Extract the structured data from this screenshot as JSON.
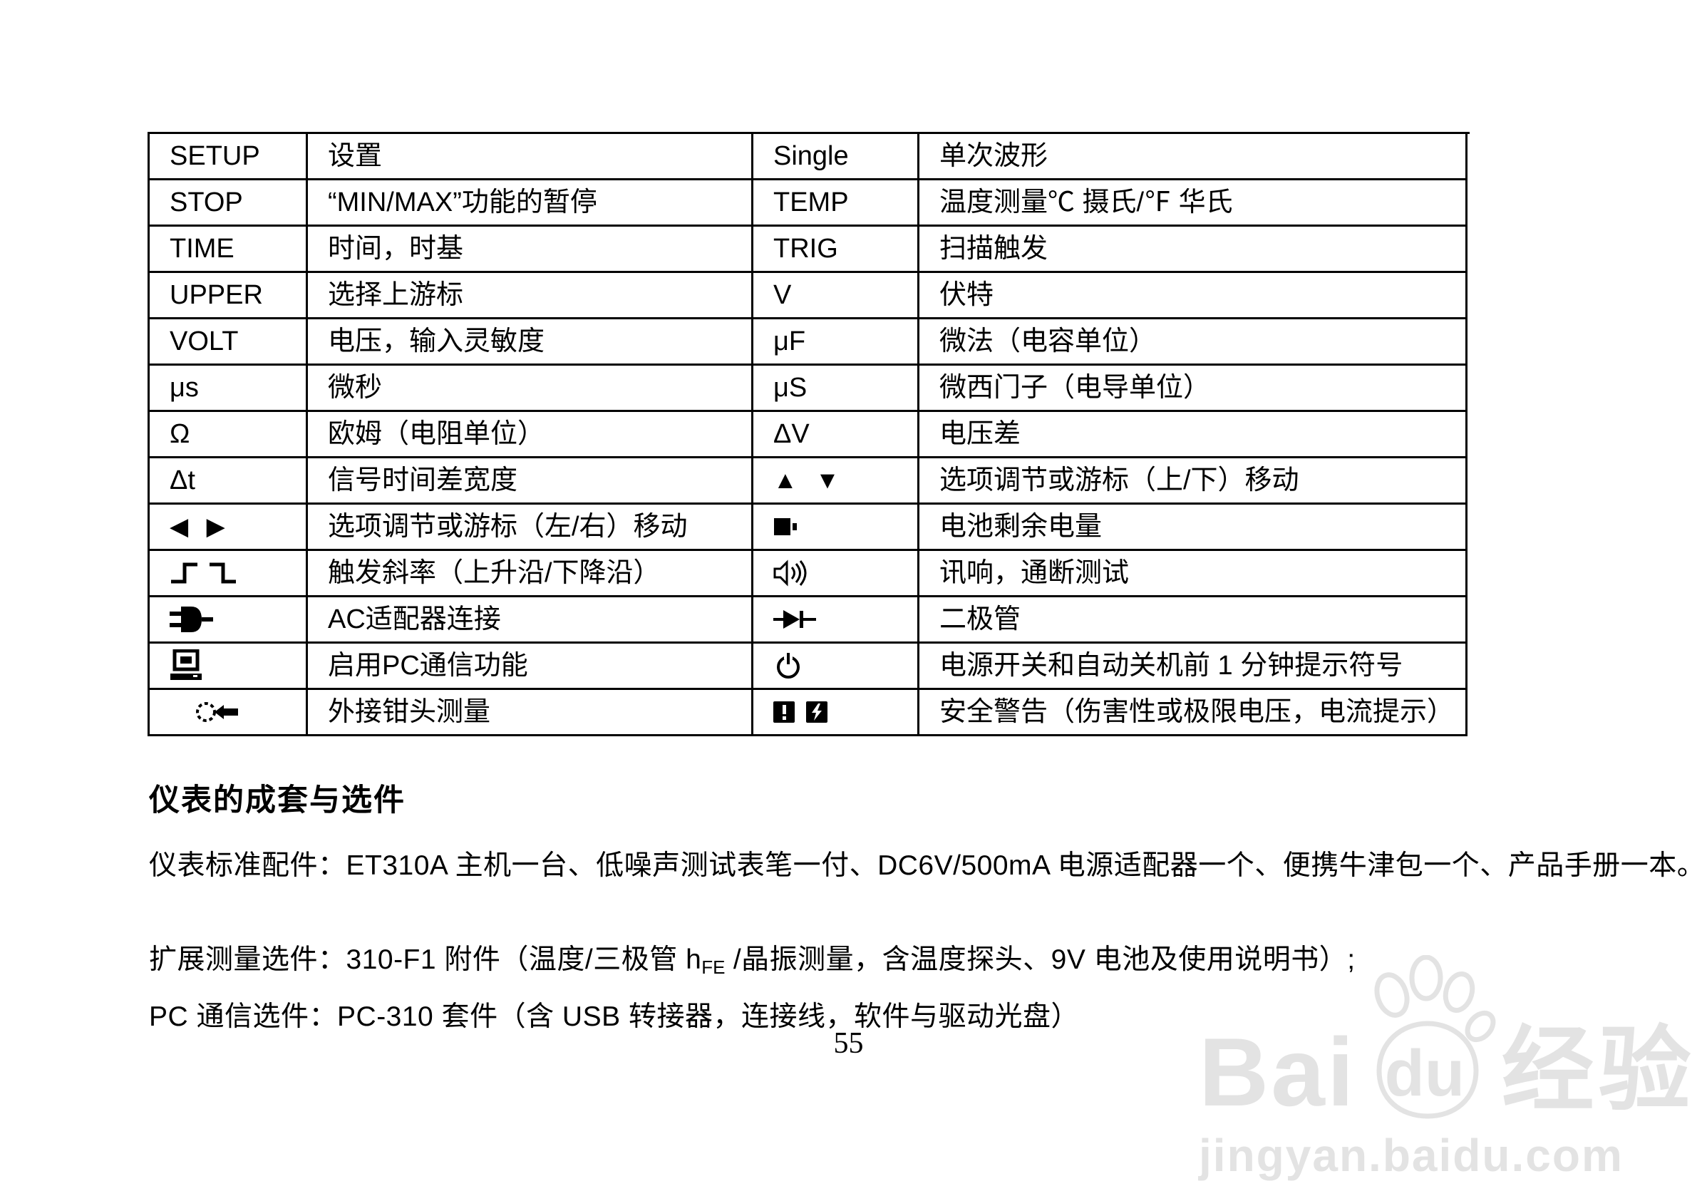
{
  "page": {
    "number": "55"
  },
  "table": {
    "rows": [
      {
        "c1": {
          "type": "text",
          "value": "SETUP"
        },
        "c2": "设置",
        "c3": {
          "type": "text",
          "value": "Single"
        },
        "c4": "单次波形"
      },
      {
        "c1": {
          "type": "text",
          "value": "STOP"
        },
        "c2": "“MIN/MAX”功能的暂停",
        "c3": {
          "type": "text",
          "value": "TEMP"
        },
        "c4": "温度测量℃ 摄氏/℉ 华氏"
      },
      {
        "c1": {
          "type": "text",
          "value": "TIME"
        },
        "c2": "时间，时基",
        "c3": {
          "type": "text",
          "value": "TRIG"
        },
        "c4": "扫描触发"
      },
      {
        "c1": {
          "type": "text",
          "value": "UPPER"
        },
        "c2": "选择上游标",
        "c3": {
          "type": "text",
          "value": "V"
        },
        "c4": "伏特"
      },
      {
        "c1": {
          "type": "text",
          "value": "VOLT"
        },
        "c2": "电压，输入灵敏度",
        "c3": {
          "type": "text",
          "value": "μF"
        },
        "c4": "微法（电容单位）"
      },
      {
        "c1": {
          "type": "text",
          "value": "μs"
        },
        "c2": "微秒",
        "c3": {
          "type": "text",
          "value": "μS"
        },
        "c4": "微西门子（电导单位）"
      },
      {
        "c1": {
          "type": "text",
          "value": "Ω"
        },
        "c2": "欧姆（电阻单位）",
        "c3": {
          "type": "text",
          "value": "ΔV"
        },
        "c4": "电压差"
      },
      {
        "c1": {
          "type": "text",
          "value": "Δt"
        },
        "c2": "信号时间差宽度",
        "c3": {
          "type": "icon",
          "name": "up-down-arrows-icon"
        },
        "c4": "选项调节或游标（上/下）移动"
      },
      {
        "c1": {
          "type": "icon",
          "name": "left-right-arrows-icon"
        },
        "c2": "选项调节或游标（左/右）移动",
        "c3": {
          "type": "icon",
          "name": "battery-icon"
        },
        "c4": "电池剩余电量"
      },
      {
        "c1": {
          "type": "icon",
          "name": "trigger-slope-icon"
        },
        "c2": "触发斜率（上升沿/下降沿）",
        "c3": {
          "type": "icon",
          "name": "buzzer-icon"
        },
        "c4": "讯响，通断测试"
      },
      {
        "c1": {
          "type": "icon",
          "name": "ac-adapter-plug-icon"
        },
        "c2": "AC适配器连接",
        "c3": {
          "type": "icon",
          "name": "diode-icon"
        },
        "c4": "二极管"
      },
      {
        "c1": {
          "type": "icon",
          "name": "pc-communication-icon"
        },
        "c2": "启用PC通信功能",
        "c3": {
          "type": "icon",
          "name": "power-icon"
        },
        "c4": "电源开关和自动关机前 1 分钟提示符号"
      },
      {
        "c1": {
          "type": "icon",
          "name": "clamp-probe-icon"
        },
        "c2": "外接钳头测量",
        "c3": {
          "type": "icon",
          "name": "safety-warning-icon"
        },
        "c4": "安全警告（伤害性或极限电压，电流提示）"
      }
    ]
  },
  "section": {
    "heading": "仪表的成套与选件",
    "para1": "仪表标准配件：ET310A 主机一台、低噪声测试表笔一付、DC6V/500mA 电源适配器一个、便携牛津包一个、产品手册一本。",
    "para2_prefix": "扩展测量选件：310-F1 附件（温度/三极管 h",
    "para2_sub": "FE",
    "para2_suffix": " /晶振测量，含温度探头、9V 电池及使用说明书）;",
    "para3": "PC 通信选件：PC-310 套件（含 USB 转接器，连接线，软件与驱动光盘）"
  },
  "watermark": {
    "brand_bai": "Bai",
    "brand_du": "du",
    "brand_cn": "经验",
    "url": "jingyan.baidu.com",
    "color": "#e3e3e3",
    "paw_icon": "baidu-paw-icon"
  }
}
